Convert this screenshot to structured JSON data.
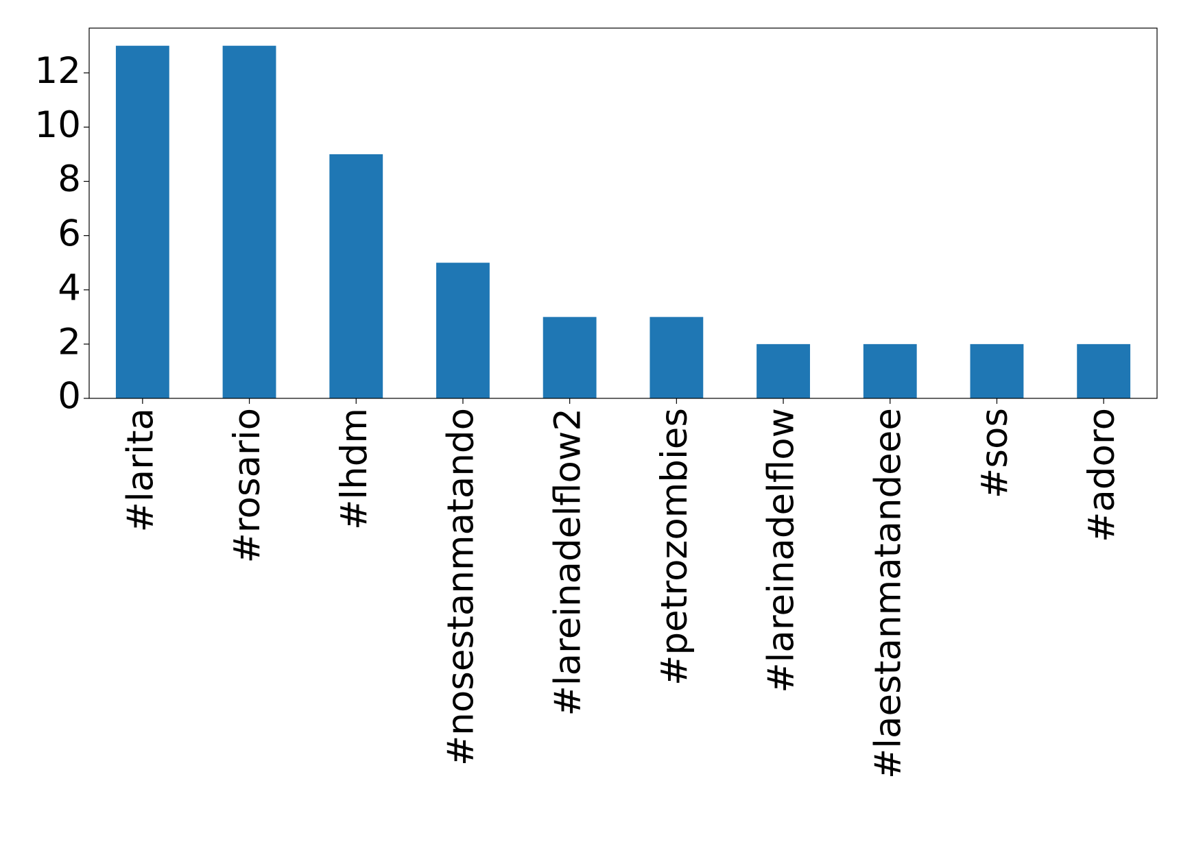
{
  "chart_data": {
    "type": "bar",
    "categories": [
      "#larita",
      "#rosario",
      "#lhdm",
      "#nosestanmatando",
      "#lareinadelflow2",
      "#petrozombies",
      "#lareinadelflow",
      "#laestanmatandeee",
      "#sos",
      "#adoro"
    ],
    "values": [
      13,
      13,
      9,
      5,
      3,
      3,
      2,
      2,
      2,
      2
    ],
    "color": "#1f77b4",
    "ylim": [
      0,
      13.65
    ],
    "yticks": [
      0,
      2,
      4,
      6,
      8,
      10,
      12
    ],
    "grid": false
  }
}
